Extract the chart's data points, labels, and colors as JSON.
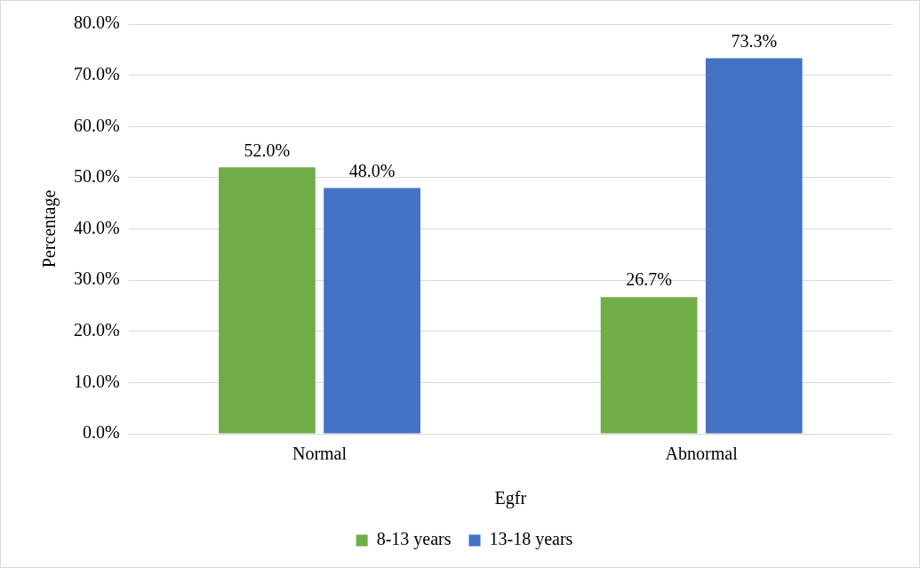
{
  "chart_data": {
    "type": "bar",
    "xlabel": "Egfr",
    "ylabel": "Percentage",
    "categories": [
      "Normal",
      "Abnormal"
    ],
    "series": [
      {
        "name": "8-13 years",
        "color": "#70ad47",
        "values": [
          52.0,
          26.7
        ],
        "value_labels": [
          "52.0%",
          "26.7%"
        ]
      },
      {
        "name": "13-18 years",
        "color": "#4472c4",
        "values": [
          48.0,
          73.3
        ],
        "value_labels": [
          "48.0%",
          "73.3%"
        ]
      }
    ],
    "ylim": [
      0,
      80
    ],
    "yticks": [
      {
        "value": 0,
        "label": "0.0%"
      },
      {
        "value": 10,
        "label": "10.0%"
      },
      {
        "value": 20,
        "label": "20.0%"
      },
      {
        "value": 30,
        "label": "30.0%"
      },
      {
        "value": 40,
        "label": "40.0%"
      },
      {
        "value": 50,
        "label": "50.0%"
      },
      {
        "value": 60,
        "label": "60.0%"
      },
      {
        "value": 70,
        "label": "70.0%"
      },
      {
        "value": 80,
        "label": "80.0%"
      }
    ],
    "grid": "y",
    "legend": "bottom"
  }
}
